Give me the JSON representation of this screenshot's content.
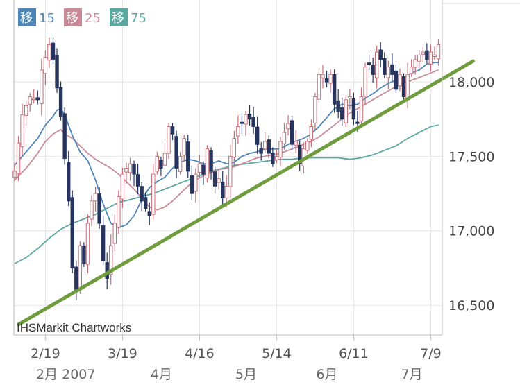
{
  "chart_data": {
    "type": "candlestick",
    "watermark": "IHSMarkit Chartworks",
    "legend": [
      {
        "badge": "移",
        "value": "15",
        "color": "#4e86b8"
      },
      {
        "badge": "移",
        "value": "25",
        "color": "#c98a96"
      },
      {
        "badge": "移",
        "value": "75",
        "color": "#5aa8a0"
      }
    ],
    "ylim": [
      16300,
      18550
    ],
    "y_ticks": [
      {
        "value": 16500,
        "label": "16,500"
      },
      {
        "value": 17000,
        "label": "17,000"
      },
      {
        "value": 17500,
        "label": "17,500"
      },
      {
        "value": 18000,
        "label": "18,000"
      }
    ],
    "x_ticks": [
      {
        "index": 8,
        "label": "2/19"
      },
      {
        "index": 28,
        "label": "3/19"
      },
      {
        "index": 48,
        "label": "4/16"
      },
      {
        "index": 68,
        "label": "5/14"
      },
      {
        "index": 88,
        "label": "6/11"
      },
      {
        "index": 108,
        "label": "7/9"
      }
    ],
    "month_labels": [
      {
        "index": 0,
        "label": "2月 2007"
      },
      {
        "index": 37,
        "label": "4月"
      },
      {
        "index": 59,
        "label": "5月"
      },
      {
        "index": 80,
        "label": "6月"
      },
      {
        "index": 102,
        "label": "7月"
      }
    ],
    "anchors": [
      [
        0,
        17400
      ],
      [
        2,
        17780
      ],
      [
        4,
        17900
      ],
      [
        6,
        17880
      ],
      [
        7,
        18080
      ],
      [
        9,
        18250
      ],
      [
        10,
        18150
      ],
      [
        12,
        17770
      ],
      [
        14,
        17200
      ],
      [
        15,
        16750
      ],
      [
        16,
        16600
      ],
      [
        17,
        16900
      ],
      [
        18,
        16780
      ],
      [
        19,
        17050
      ],
      [
        20,
        17200
      ],
      [
        21,
        17250
      ],
      [
        22,
        17050
      ],
      [
        23,
        16800
      ],
      [
        24,
        16680
      ],
      [
        25,
        16900
      ],
      [
        26,
        17050
      ],
      [
        27,
        17230
      ],
      [
        28,
        17380
      ],
      [
        29,
        17420
      ],
      [
        30,
        17450
      ],
      [
        31,
        17380
      ],
      [
        32,
        17300
      ],
      [
        33,
        17200
      ],
      [
        34,
        17150
      ],
      [
        35,
        17100
      ],
      [
        36,
        17380
      ],
      [
        37,
        17500
      ],
      [
        38,
        17420
      ],
      [
        39,
        17520
      ],
      [
        40,
        17700
      ],
      [
        41,
        17650
      ],
      [
        42,
        17420
      ],
      [
        43,
        17500
      ],
      [
        44,
        17620
      ],
      [
        45,
        17400
      ],
      [
        46,
        17250
      ],
      [
        47,
        17380
      ],
      [
        48,
        17450
      ],
      [
        49,
        17380
      ],
      [
        50,
        17550
      ],
      [
        51,
        17400
      ],
      [
        52,
        17300
      ],
      [
        53,
        17350
      ],
      [
        54,
        17220
      ],
      [
        55,
        17300
      ],
      [
        56,
        17500
      ],
      [
        57,
        17620
      ],
      [
        58,
        17700
      ],
      [
        59,
        17720
      ],
      [
        60,
        17780
      ],
      [
        61,
        17750
      ],
      [
        62,
        17700
      ],
      [
        63,
        17580
      ],
      [
        64,
        17520
      ],
      [
        65,
        17600
      ],
      [
        66,
        17520
      ],
      [
        67,
        17450
      ],
      [
        68,
        17500
      ],
      [
        69,
        17600
      ],
      [
        70,
        17660
      ],
      [
        71,
        17720
      ],
      [
        72,
        17580
      ],
      [
        73,
        17600
      ],
      [
        74,
        17450
      ],
      [
        75,
        17550
      ],
      [
        76,
        17600
      ],
      [
        77,
        17700
      ],
      [
        78,
        17900
      ],
      [
        79,
        18050
      ],
      [
        80,
        18050
      ],
      [
        81,
        18000
      ],
      [
        82,
        18050
      ],
      [
        83,
        17850
      ],
      [
        84,
        17800
      ],
      [
        85,
        17750
      ],
      [
        86,
        17880
      ],
      [
        87,
        17900
      ],
      [
        88,
        17750
      ],
      [
        89,
        17720
      ],
      [
        90,
        17900
      ],
      [
        91,
        18100
      ],
      [
        92,
        18120
      ],
      [
        93,
        18050
      ],
      [
        94,
        18200
      ],
      [
        95,
        18150
      ],
      [
        96,
        18050
      ],
      [
        97,
        18100
      ],
      [
        98,
        18050
      ],
      [
        99,
        17950
      ],
      [
        100,
        18050
      ],
      [
        101,
        17900
      ],
      [
        102,
        18050
      ],
      [
        103,
        18100
      ],
      [
        104,
        18150
      ],
      [
        105,
        18180
      ],
      [
        106,
        18200
      ],
      [
        107,
        18150
      ],
      [
        108,
        18200
      ],
      [
        109,
        18180
      ],
      [
        110,
        18250
      ]
    ],
    "ma15": [
      [
        0,
        17440
      ],
      [
        3,
        17530
      ],
      [
        6,
        17620
      ],
      [
        8,
        17710
      ],
      [
        10,
        17770
      ],
      [
        11,
        17810
      ],
      [
        12,
        17820
      ],
      [
        13,
        17780
      ],
      [
        15,
        17640
      ],
      [
        17,
        17530
      ],
      [
        19,
        17470
      ],
      [
        21,
        17340
      ],
      [
        23,
        17180
      ],
      [
        25,
        17050
      ],
      [
        27,
        17020
      ],
      [
        29,
        17040
      ],
      [
        31,
        17100
      ],
      [
        33,
        17210
      ],
      [
        35,
        17290
      ],
      [
        37,
        17330
      ],
      [
        39,
        17360
      ],
      [
        41,
        17420
      ],
      [
        43,
        17460
      ],
      [
        45,
        17480
      ],
      [
        47,
        17470
      ],
      [
        49,
        17450
      ],
      [
        51,
        17450
      ],
      [
        53,
        17470
      ],
      [
        55,
        17450
      ],
      [
        57,
        17460
      ],
      [
        59,
        17500
      ],
      [
        61,
        17520
      ],
      [
        63,
        17530
      ],
      [
        65,
        17550
      ],
      [
        67,
        17550
      ],
      [
        69,
        17550
      ],
      [
        71,
        17580
      ],
      [
        73,
        17600
      ],
      [
        75,
        17620
      ],
      [
        77,
        17650
      ],
      [
        79,
        17700
      ],
      [
        81,
        17760
      ],
      [
        83,
        17820
      ],
      [
        85,
        17850
      ],
      [
        87,
        17840
      ],
      [
        89,
        17850
      ],
      [
        91,
        17890
      ],
      [
        93,
        17920
      ],
      [
        95,
        17960
      ],
      [
        97,
        17990
      ],
      [
        99,
        18010
      ],
      [
        101,
        18030
      ],
      [
        103,
        18060
      ],
      [
        105,
        18080
      ],
      [
        107,
        18120
      ],
      [
        109,
        18130
      ],
      [
        110,
        18130
      ]
    ],
    "ma25": [
      [
        0,
        17340
      ],
      [
        3,
        17420
      ],
      [
        6,
        17520
      ],
      [
        8,
        17600
      ],
      [
        10,
        17650
      ],
      [
        12,
        17680
      ],
      [
        13,
        17650
      ],
      [
        15,
        17620
      ],
      [
        17,
        17570
      ],
      [
        19,
        17520
      ],
      [
        21,
        17480
      ],
      [
        23,
        17450
      ],
      [
        25,
        17420
      ],
      [
        27,
        17380
      ],
      [
        29,
        17330
      ],
      [
        31,
        17280
      ],
      [
        33,
        17220
      ],
      [
        35,
        17160
      ],
      [
        37,
        17140
      ],
      [
        39,
        17160
      ],
      [
        41,
        17200
      ],
      [
        43,
        17250
      ],
      [
        45,
        17300
      ],
      [
        47,
        17340
      ],
      [
        49,
        17370
      ],
      [
        51,
        17390
      ],
      [
        53,
        17410
      ],
      [
        55,
        17420
      ],
      [
        57,
        17430
      ],
      [
        59,
        17450
      ],
      [
        61,
        17470
      ],
      [
        63,
        17490
      ],
      [
        65,
        17500
      ],
      [
        67,
        17510
      ],
      [
        69,
        17520
      ],
      [
        71,
        17540
      ],
      [
        73,
        17560
      ],
      [
        75,
        17580
      ],
      [
        77,
        17600
      ],
      [
        79,
        17630
      ],
      [
        81,
        17670
      ],
      [
        83,
        17710
      ],
      [
        85,
        17750
      ],
      [
        87,
        17790
      ],
      [
        89,
        17820
      ],
      [
        91,
        17850
      ],
      [
        93,
        17880
      ],
      [
        95,
        17910
      ],
      [
        97,
        17940
      ],
      [
        99,
        17970
      ],
      [
        101,
        17990
      ],
      [
        103,
        18010
      ],
      [
        105,
        18030
      ],
      [
        107,
        18050
      ],
      [
        110,
        18080
      ]
    ],
    "ma75": [
      [
        0,
        16780
      ],
      [
        3,
        16820
      ],
      [
        6,
        16880
      ],
      [
        9,
        16950
      ],
      [
        12,
        17010
      ],
      [
        15,
        17050
      ],
      [
        18,
        17080
      ],
      [
        21,
        17110
      ],
      [
        24,
        17150
      ],
      [
        27,
        17190
      ],
      [
        30,
        17210
      ],
      [
        33,
        17230
      ],
      [
        36,
        17250
      ],
      [
        39,
        17280
      ],
      [
        42,
        17310
      ],
      [
        45,
        17340
      ],
      [
        48,
        17370
      ],
      [
        51,
        17400
      ],
      [
        54,
        17420
      ],
      [
        57,
        17440
      ],
      [
        60,
        17450
      ],
      [
        63,
        17460
      ],
      [
        66,
        17470
      ],
      [
        69,
        17480
      ],
      [
        72,
        17480
      ],
      [
        75,
        17490
      ],
      [
        78,
        17490
      ],
      [
        81,
        17490
      ],
      [
        84,
        17490
      ],
      [
        87,
        17480
      ],
      [
        90,
        17490
      ],
      [
        93,
        17510
      ],
      [
        96,
        17540
      ],
      [
        99,
        17570
      ],
      [
        102,
        17620
      ],
      [
        105,
        17660
      ],
      [
        108,
        17700
      ],
      [
        110,
        17710
      ]
    ],
    "trendline": {
      "start": [
        1,
        16370
      ],
      "end": [
        119,
        18140
      ],
      "color": "#6f9c3c"
    }
  }
}
